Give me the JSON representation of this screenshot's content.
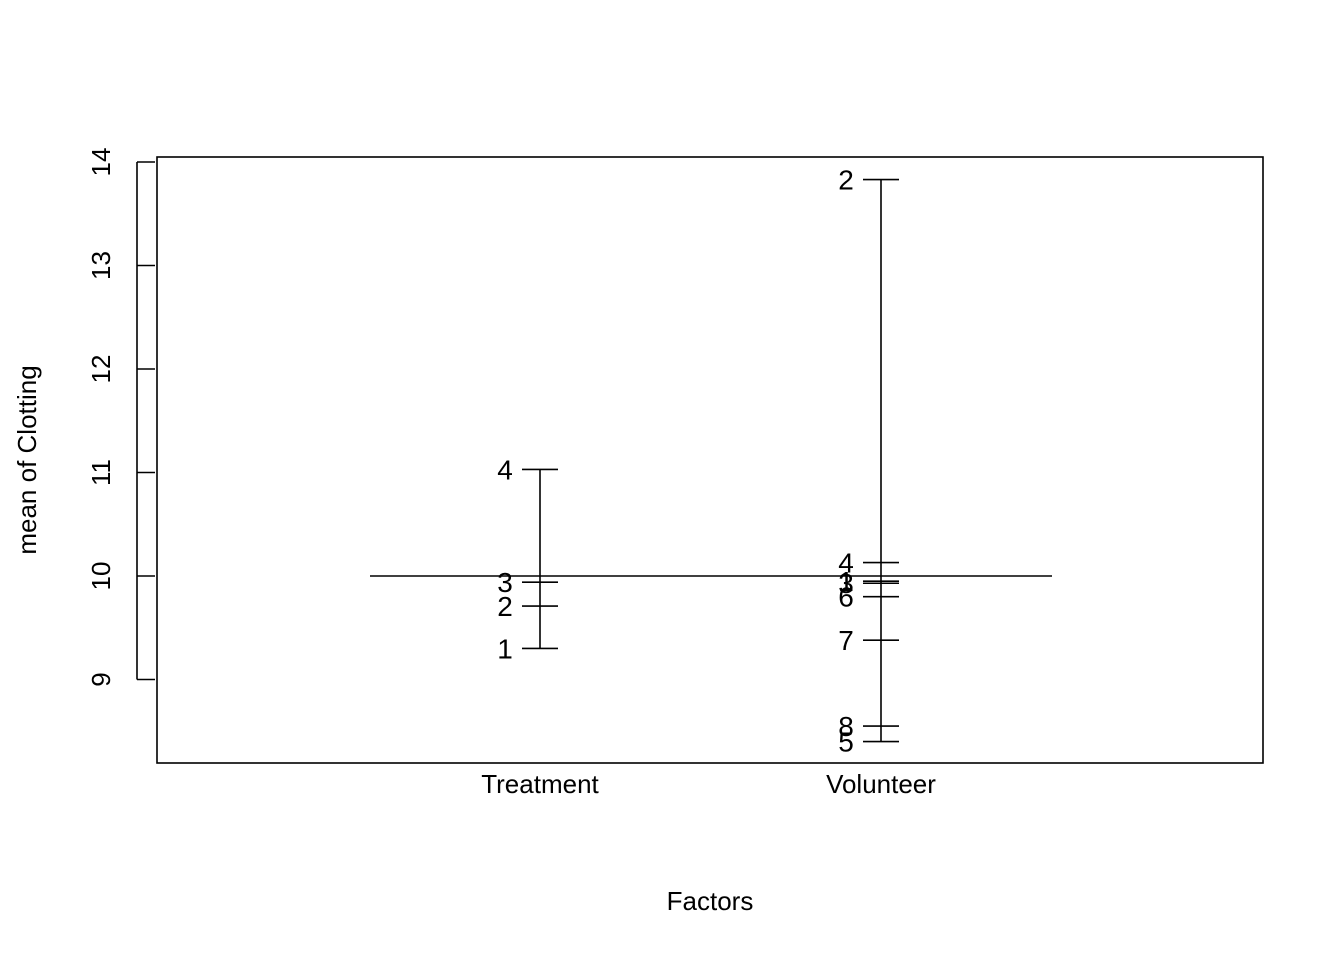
{
  "chart_data": {
    "type": "design-plot",
    "title": "",
    "xlabel": "Factors",
    "ylabel": "mean of Clotting",
    "ylim": [
      8.4,
      14.2
    ],
    "yticks": [
      "9",
      "10",
      "11",
      "12",
      "13",
      "14"
    ],
    "grand_mean": 10.0,
    "factors": [
      {
        "name": "Treatment",
        "levels": [
          {
            "label": "1",
            "value": 9.3
          },
          {
            "label": "2",
            "value": 9.71
          },
          {
            "label": "3",
            "value": 9.94
          },
          {
            "label": "4",
            "value": 11.03
          }
        ]
      },
      {
        "name": "Volunteer",
        "levels": [
          {
            "label": "1",
            "value": 9.95
          },
          {
            "label": "2",
            "value": 13.83
          },
          {
            "label": "3",
            "value": 9.93
          },
          {
            "label": "4",
            "value": 10.13
          },
          {
            "label": "5",
            "value": 8.4
          },
          {
            "label": "6",
            "value": 9.8
          },
          {
            "label": "7",
            "value": 9.38
          },
          {
            "label": "8",
            "value": 8.55
          }
        ]
      }
    ]
  }
}
